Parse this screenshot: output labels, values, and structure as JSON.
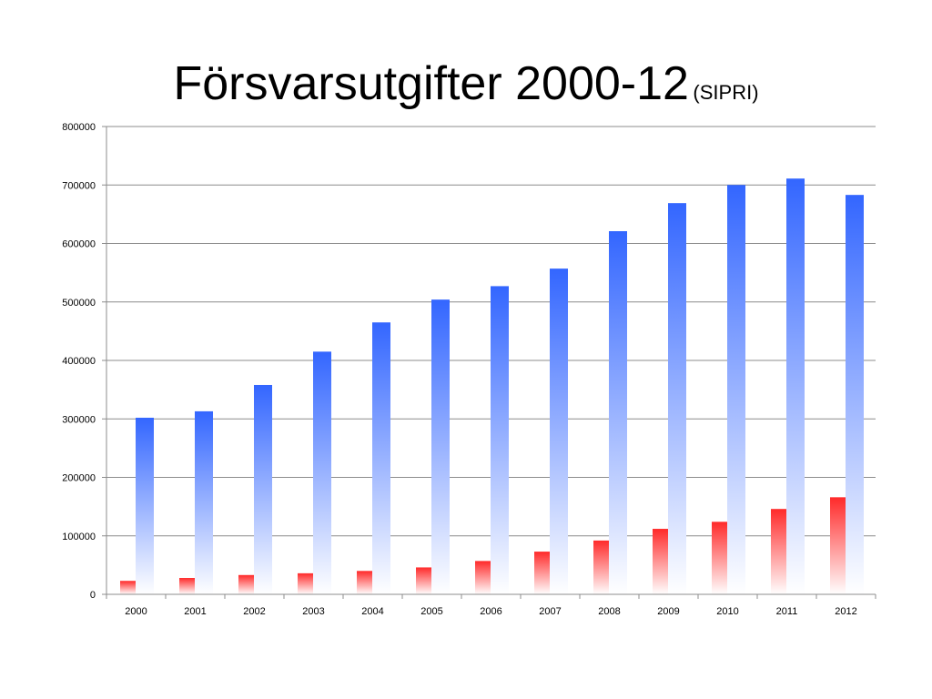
{
  "title": "Försvarsutgifter 2000-12",
  "subtitle": "(SIPRI)",
  "chart_data": {
    "type": "bar",
    "title": "Försvarsutgifter 2000-12",
    "subtitle": "(SIPRI)",
    "xlabel": "",
    "ylabel": "",
    "categories": [
      "2000",
      "2001",
      "2002",
      "2003",
      "2004",
      "2005",
      "2006",
      "2007",
      "2008",
      "2009",
      "2010",
      "2011",
      "2012"
    ],
    "series": [
      {
        "color": "#ff2a2a",
        "values": [
          23000,
          28000,
          33000,
          36000,
          40000,
          46000,
          57000,
          73000,
          92000,
          112000,
          124000,
          146000,
          166000
        ]
      },
      {
        "color": "#3366ff",
        "values": [
          302000,
          313000,
          358000,
          415000,
          465000,
          504000,
          527000,
          557000,
          621000,
          669000,
          700000,
          711000,
          683000
        ]
      }
    ],
    "ylim": [
      0,
      800000
    ],
    "yticks": [
      "0",
      "100000",
      "200000",
      "300000",
      "400000",
      "500000",
      "600000",
      "700000",
      "800000"
    ],
    "grid": true,
    "legend": "none"
  }
}
